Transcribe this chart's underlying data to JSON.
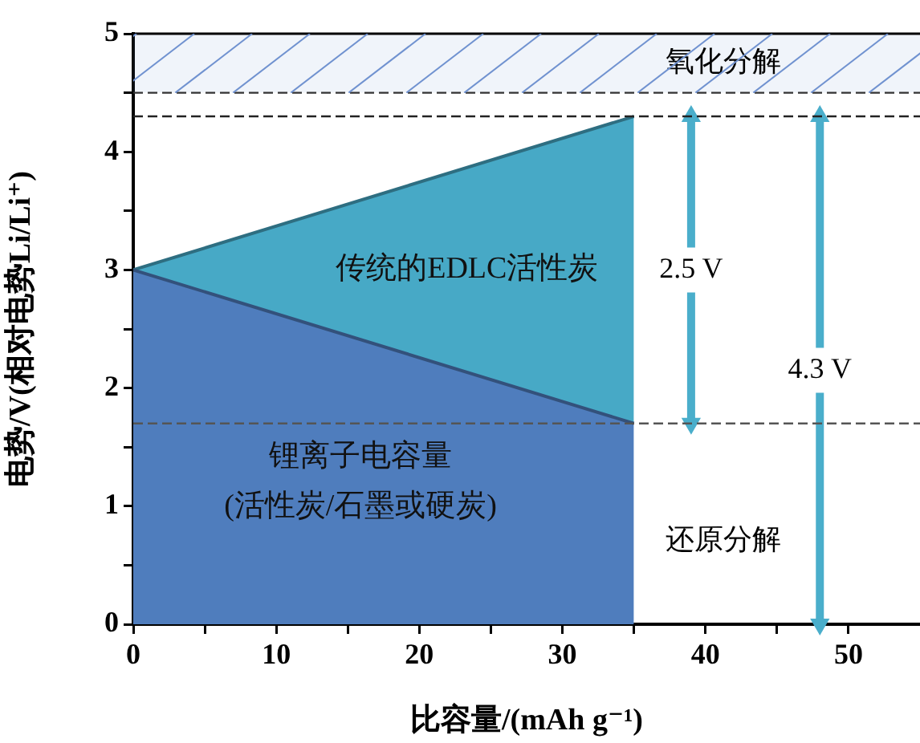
{
  "chart_data": {
    "type": "area",
    "xlabel": "比容量/(mAh g⁻¹)",
    "ylabel": "电势/V(相对电势Li/Li⁺)",
    "xlim": [
      0,
      55
    ],
    "xticks": [
      0,
      {
        "value": 5,
        "label": null
      },
      10,
      {
        "value": 15,
        "label": null
      },
      20,
      {
        "value": 25,
        "label": null
      },
      30,
      {
        "value": 35,
        "label": null
      },
      40,
      {
        "value": 45,
        "label": null
      },
      50
    ],
    "ylim": [
      0,
      5
    ],
    "yticks": [
      0,
      {
        "value": 0.5,
        "label": null
      },
      1,
      {
        "value": 1.5,
        "label": null
      },
      2,
      {
        "value": 2.5,
        "label": null
      },
      3,
      {
        "value": 3.5,
        "label": null
      },
      4,
      {
        "value": 4.5,
        "label": null
      },
      5
    ],
    "grid": false,
    "legend": false,
    "stacked": true,
    "series": [
      {
        "name": "锂离子电容量\n(活性炭/石墨或硬炭)",
        "color": "#4f7dbd",
        "x": [
          0,
          35
        ],
        "values": [
          3,
          1.7
        ]
      },
      {
        "name": "传统的EDLC活性炭",
        "color": "#47a9c6",
        "x": [
          0,
          35
        ],
        "values": [
          0,
          2.6
        ]
      },
      {
        "name": "2.5 V",
        "type": "line",
        "color": "#4aaecb",
        "x": [
          39,
          39
        ],
        "values": [
          1.7,
          4.3
        ],
        "marker": "triangle"
      },
      {
        "name": "4.3 V",
        "type": "line",
        "color": "#4aaecb",
        "x": [
          48,
          48
        ],
        "values": [
          0,
          4.3
        ],
        "marker": "triangle"
      }
    ],
    "ref_lines": [
      {
        "axis": "y",
        "value": 4.5,
        "line_style": "dashed",
        "color": "#333333"
      },
      {
        "axis": "y",
        "value": 4.3,
        "line_style": "dashed",
        "color": "#222222"
      },
      {
        "axis": "y",
        "value": 1.7,
        "line_style": "dashed",
        "color": "#555555"
      }
    ],
    "bands": [
      {
        "axis": "y",
        "from": 4.5,
        "to": 5,
        "label": "氧化分解",
        "color": "#7092d0"
      }
    ],
    "annotations": [
      "还原分解"
    ]
  }
}
